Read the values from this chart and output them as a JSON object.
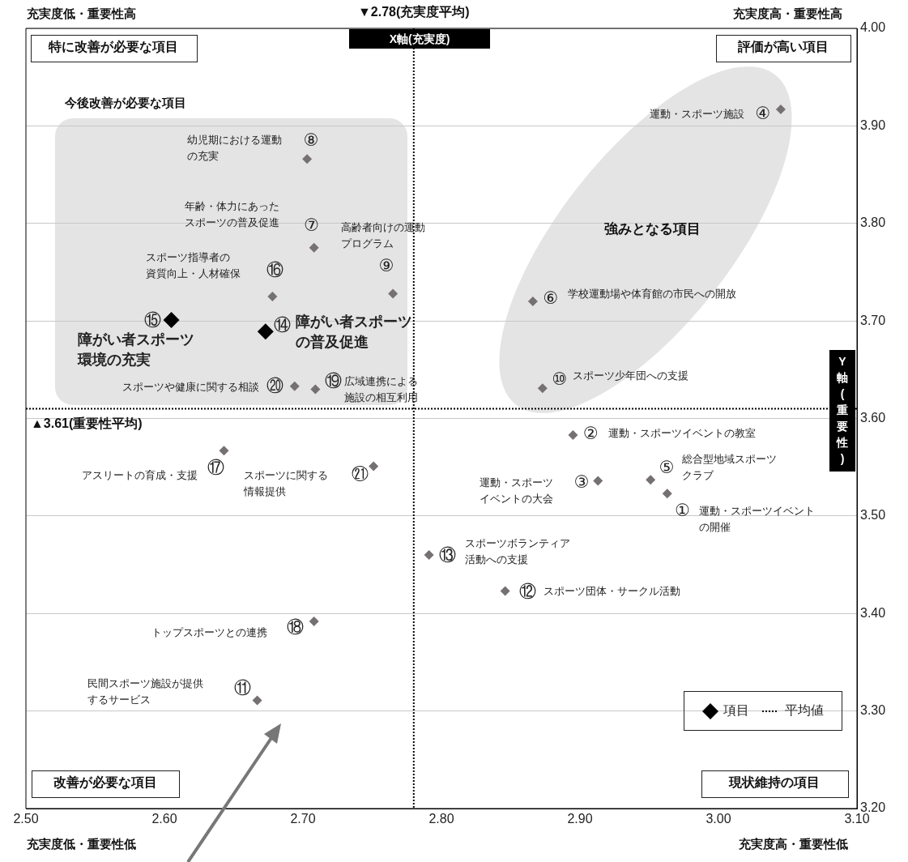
{
  "chart_data": {
    "type": "scatter",
    "marker": "diamond",
    "grid": "y",
    "legend": "bottom right",
    "xlabel": "X軸(充実度)",
    "ylabel": "Y軸(重要性)",
    "xlim": [
      2.5,
      3.1
    ],
    "xticks": [
      {
        "value": 2.5,
        "label": "2.50"
      },
      {
        "value": 2.6,
        "label": "2.60"
      },
      {
        "value": 2.7,
        "label": "2.70"
      },
      {
        "value": 2.8,
        "label": "2.80"
      },
      {
        "value": 2.9,
        "label": "2.90"
      },
      {
        "value": 3.0,
        "label": "3.00"
      },
      {
        "value": 3.1,
        "label": "3.10"
      }
    ],
    "ylim": [
      3.2,
      4.0
    ],
    "yticks": [
      {
        "value": 3.2,
        "label": "3.20"
      },
      {
        "value": 3.3,
        "label": "3.30"
      },
      {
        "value": 3.4,
        "label": "3.40"
      },
      {
        "value": 3.5,
        "label": "3.50"
      },
      {
        "value": 3.6,
        "label": "3.60"
      },
      {
        "value": 3.7,
        "label": "3.70"
      },
      {
        "value": 3.8,
        "label": "3.80"
      },
      {
        "value": 3.9,
        "label": "3.90"
      },
      {
        "value": 4.0,
        "label": "4.00"
      }
    ],
    "series": [
      {
        "name": "項目",
        "color": "#000000",
        "x": [
          2.605,
          2.673
        ],
        "values": [
          3.701,
          3.689
        ]
      },
      {
        "color": "#767171",
        "x": [
          2.963,
          2.895,
          2.913,
          3.045,
          2.951,
          2.866,
          2.708,
          2.703,
          2.765,
          2.873,
          2.667,
          2.846,
          2.791,
          2.678,
          2.643,
          2.708,
          2.709,
          2.694,
          2.751
        ],
        "values": [
          3.523,
          3.583,
          3.536,
          3.917,
          3.537,
          3.72,
          3.775,
          3.866,
          3.728,
          3.631,
          3.311,
          3.423,
          3.46,
          3.725,
          3.567,
          3.392,
          3.63,
          3.633,
          3.551
        ]
      }
    ],
    "ref_lines": [
      {
        "axis": "x",
        "value": 2.78,
        "label": "▼2.78(充実度平均)",
        "color": "#000000",
        "line_style": "dotted"
      },
      {
        "axis": "y",
        "value": 3.61,
        "label": "▲3.61(重要性平均)",
        "color": "#000000",
        "line_style": "dotted"
      }
    ],
    "annotations": [
      "充実度低・重要性高",
      "充実度高・重要性高",
      "充実度低・重要性低",
      "充実度高・重要性低",
      "特に改善が必要な項目",
      "評価が高い項目",
      "改善が必要な項目",
      "現状維持の項目",
      "今後改善が必要な項目",
      "強みとなる項目",
      "平均値",
      {
        "text": "①",
        "x": 2.963,
        "y": 3.523
      },
      "運動・スポーツイベントの開催",
      {
        "text": "②",
        "x": 2.895,
        "y": 3.583
      },
      "運動・スポーツイベントの教室",
      {
        "text": "③",
        "x": 2.913,
        "y": 3.536
      },
      "運動・スポーツイベントの大会",
      {
        "text": "④",
        "x": 3.045,
        "y": 3.917
      },
      "運動・スポーツ施設",
      {
        "text": "⑤",
        "x": 2.951,
        "y": 3.537
      },
      "総合型地域スポーツクラブ",
      {
        "text": "⑥",
        "x": 2.866,
        "y": 3.72
      },
      "学校運動場や体育館の市民への開放",
      {
        "text": "⑦",
        "x": 2.708,
        "y": 3.775
      },
      "年齢・体力にあったスポーツの普及促進",
      {
        "text": "⑧",
        "x": 2.703,
        "y": 3.866
      },
      "幼児期における運動の充実",
      {
        "text": "⑨",
        "x": 2.765,
        "y": 3.728
      },
      "高齢者向けの運動プログラム",
      {
        "text": "⑩",
        "x": 2.873,
        "y": 3.631
      },
      "スポーツ少年団への支援",
      {
        "text": "⑪",
        "x": 2.667,
        "y": 3.311
      },
      "民間スポーツ施設が提供するサービス",
      {
        "text": "⑫",
        "x": 2.846,
        "y": 3.423
      },
      "スポーツ団体・サークル活動",
      {
        "text": "⑬",
        "x": 2.791,
        "y": 3.46
      },
      "スポーツボランティア活動への支援",
      {
        "text": "⑭",
        "x": 2.673,
        "y": 3.689
      },
      "障がい者スポーツの普及促進",
      {
        "text": "⑮",
        "x": 2.605,
        "y": 3.701
      },
      "障がい者スポーツ環境の充実",
      {
        "text": "⑯",
        "x": 2.678,
        "y": 3.725
      },
      "スポーツ指導者の資質向上・人材確保",
      {
        "text": "⑰",
        "x": 2.643,
        "y": 3.567
      },
      "アスリートの育成・支援",
      {
        "text": "⑱",
        "x": 2.708,
        "y": 3.392
      },
      "トップスポーツとの連携",
      {
        "text": "⑲",
        "x": 2.709,
        "y": 3.63
      },
      "広域連携による施設の相互利用",
      {
        "text": "⑳",
        "x": 2.694,
        "y": 3.633
      },
      "スポーツや健康に関する相談",
      {
        "text": "㉑",
        "x": 2.751,
        "y": 3.551
      },
      "スポーツに関する情報提供"
    ]
  }
}
